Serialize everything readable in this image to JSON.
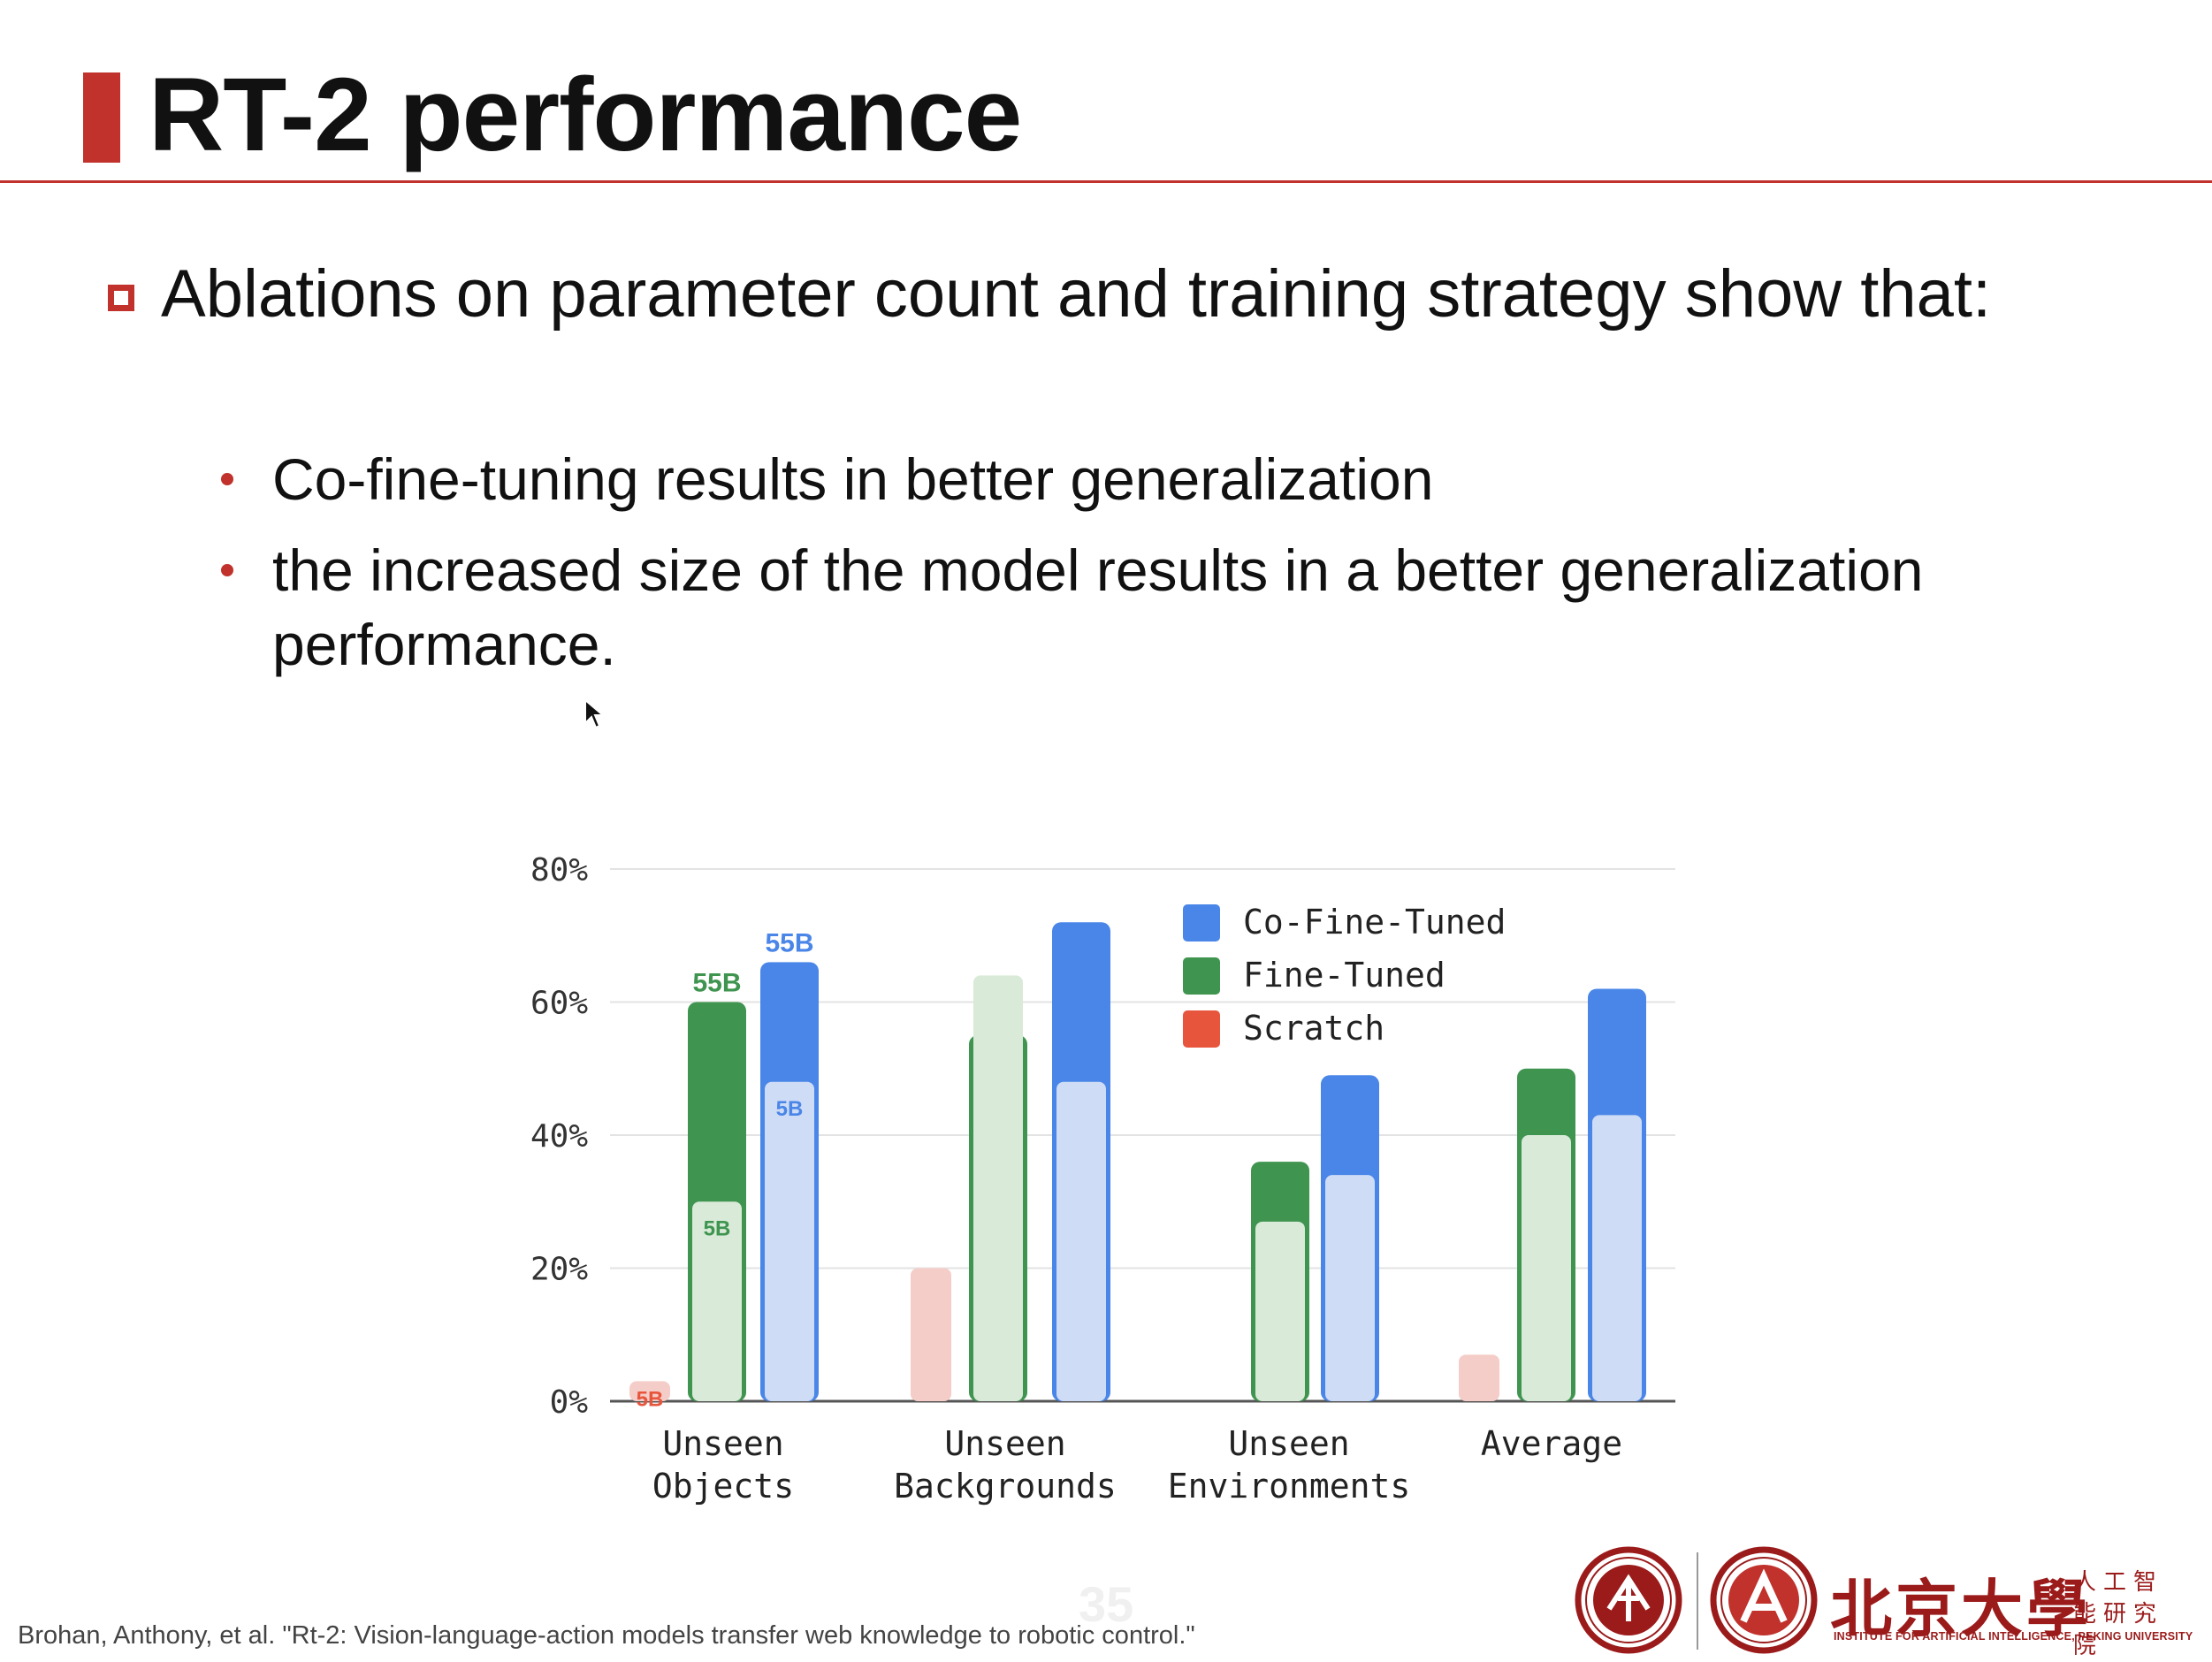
{
  "slide": {
    "title": "RT-2 performance",
    "main_bullet": "Ablations on parameter count and training strategy show that:",
    "sub_bullets": [
      "Co-fine-tuning results in better generalization",
      "the increased size of the model results in a better generalization performance."
    ],
    "citation": "Brohan, Anthony, et al. \"Rt-2: Vision-language-action models transfer web knowledge to robotic control.\"",
    "page_number": "35",
    "institution": {
      "name_cn": "北京大學",
      "name_cn_small": "人工智能研究院",
      "name_en": "INSTITUTE FOR ARTIFICIAL INTELLIGENCE, PEKING UNIVERSITY"
    },
    "colors": {
      "accent": "#c0322b",
      "institution": "#9b1b1b"
    }
  },
  "chart_data": {
    "type": "bar",
    "title": "",
    "xlabel": "",
    "ylabel": "",
    "ylim": [
      0,
      80
    ],
    "yticks": [
      "0%",
      "20%",
      "40%",
      "60%",
      "80%"
    ],
    "categories": [
      [
        "Unseen",
        "Objects"
      ],
      [
        "Unseen",
        "Backgrounds"
      ],
      [
        "Unseen",
        "Environments"
      ],
      [
        "Average"
      ]
    ],
    "legend": {
      "placement": "top-right",
      "entries": [
        "Co-Fine-Tuned",
        "Fine-Tuned",
        "Scratch"
      ]
    },
    "series": [
      {
        "name": "Scratch",
        "color": "#e8553d",
        "light_color": "#f5cdc8",
        "values_55b": [
          null,
          null,
          null,
          null
        ],
        "values_5b": [
          3,
          20,
          0,
          7
        ]
      },
      {
        "name": "Fine-Tuned",
        "color": "#3f944f",
        "light_color": "#d9ead8",
        "values_55b": [
          60,
          55,
          36,
          50
        ],
        "values_5b": [
          30,
          64,
          27,
          40
        ]
      },
      {
        "name": "Co-Fine-Tuned",
        "color": "#4a86e8",
        "light_color": "#cfdcf5",
        "values_55b": [
          66,
          72,
          49,
          62
        ],
        "values_5b": [
          48,
          48,
          34,
          43
        ]
      }
    ],
    "annotations": [
      {
        "text": "5B",
        "series": "Scratch",
        "category": 0,
        "size": "5B"
      },
      {
        "text": "55B",
        "series": "Fine-Tuned",
        "category": 0,
        "size": "55B"
      },
      {
        "text": "5B",
        "series": "Fine-Tuned",
        "category": 0,
        "size": "5B"
      },
      {
        "text": "55B",
        "series": "Co-Fine-Tuned",
        "category": 0,
        "size": "55B"
      },
      {
        "text": "5B",
        "series": "Co-Fine-Tuned",
        "category": 0,
        "size": "5B"
      }
    ]
  }
}
